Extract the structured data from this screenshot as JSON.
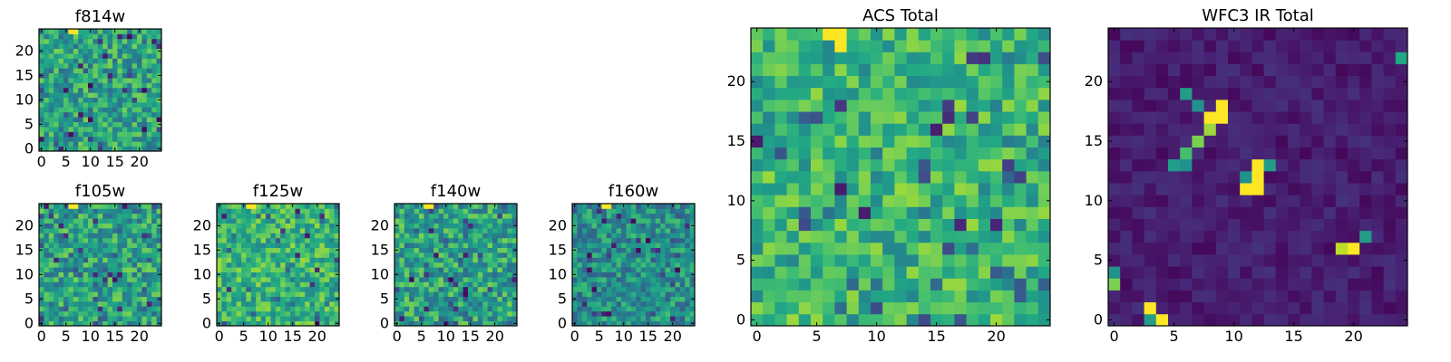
{
  "figure": {
    "colormap": "viridis",
    "colormap_stops": [
      "#440154",
      "#482475",
      "#414487",
      "#355f8d",
      "#2a788e",
      "#21918c",
      "#22a884",
      "#44bf70",
      "#7ad151",
      "#bddf26",
      "#fde725"
    ]
  },
  "chart_data": [
    {
      "type": "heatmap",
      "title": "f814w",
      "grid_size": 25,
      "xlim": [
        -0.5,
        24.5
      ],
      "ylim": [
        -0.5,
        24.5
      ],
      "xticks": [
        "0",
        "5",
        "10",
        "15",
        "20"
      ],
      "yticks": [
        "0",
        "5",
        "10",
        "15",
        "20"
      ],
      "values_note": "25x25 noise field, bright peak near x=5-9, y=23-24",
      "hotspots": [
        {
          "x": 6,
          "y": 24,
          "value": 1.0
        },
        {
          "x": 7,
          "y": 24,
          "value": 1.0
        }
      ]
    },
    {
      "type": "heatmap",
      "title": "f105w",
      "grid_size": 25,
      "xlim": [
        -0.5,
        24.5
      ],
      "ylim": [
        -0.5,
        24.5
      ],
      "xticks": [
        "0",
        "5",
        "10",
        "15",
        "20"
      ],
      "yticks": [
        "0",
        "5",
        "10",
        "15",
        "20"
      ],
      "hotspots": [
        {
          "x": 6,
          "y": 24,
          "value": 1.0
        },
        {
          "x": 7,
          "y": 24,
          "value": 1.0
        }
      ]
    },
    {
      "type": "heatmap",
      "title": "f125w",
      "grid_size": 25,
      "xlim": [
        -0.5,
        24.5
      ],
      "ylim": [
        -0.5,
        24.5
      ],
      "xticks": [
        "0",
        "5",
        "10",
        "15",
        "20"
      ],
      "yticks": [
        "0",
        "5",
        "10",
        "15",
        "20"
      ],
      "hotspots": [
        {
          "x": 6,
          "y": 24,
          "value": 1.0
        },
        {
          "x": 7,
          "y": 24,
          "value": 1.0
        }
      ]
    },
    {
      "type": "heatmap",
      "title": "f140w",
      "grid_size": 25,
      "xlim": [
        -0.5,
        24.5
      ],
      "ylim": [
        -0.5,
        24.5
      ],
      "xticks": [
        "0",
        "5",
        "10",
        "15",
        "20"
      ],
      "yticks": [
        "0",
        "5",
        "10",
        "15",
        "20"
      ],
      "hotspots": [
        {
          "x": 6,
          "y": 24,
          "value": 1.0
        },
        {
          "x": 7,
          "y": 24,
          "value": 1.0
        }
      ]
    },
    {
      "type": "heatmap",
      "title": "f160w",
      "grid_size": 25,
      "xlim": [
        -0.5,
        24.5
      ],
      "ylim": [
        -0.5,
        24.5
      ],
      "xticks": [
        "0",
        "5",
        "10",
        "15",
        "20"
      ],
      "yticks": [
        "0",
        "5",
        "10",
        "15",
        "20"
      ],
      "hotspots": [
        {
          "x": 6,
          "y": 24,
          "value": 1.0
        },
        {
          "x": 7,
          "y": 24,
          "value": 1.0
        }
      ]
    },
    {
      "type": "heatmap",
      "title": "ACS Total",
      "grid_size": 25,
      "xlim": [
        -0.5,
        24.5
      ],
      "ylim": [
        -0.5,
        24.5
      ],
      "xticks": [
        "0",
        "5",
        "10",
        "15",
        "20"
      ],
      "yticks": [
        "0",
        "5",
        "10",
        "15",
        "20"
      ],
      "hotspots": [
        {
          "x": 6,
          "y": 24,
          "value": 1.0
        },
        {
          "x": 7,
          "y": 24,
          "value": 1.0
        },
        {
          "x": 7,
          "y": 23,
          "value": 1.0
        }
      ]
    },
    {
      "type": "heatmap",
      "title": "WFC3 IR Total",
      "grid_size": 25,
      "xlim": [
        -0.5,
        24.5
      ],
      "ylim": [
        -0.5,
        24.5
      ],
      "xticks": [
        "0",
        "5",
        "10",
        "15",
        "20"
      ],
      "yticks": [
        "0",
        "5",
        "10",
        "15",
        "20"
      ],
      "background": "low (dark purple)",
      "hotspots": [
        {
          "x": 9,
          "y": 18,
          "value": 1.0
        },
        {
          "x": 8,
          "y": 17,
          "value": 1.0
        },
        {
          "x": 9,
          "y": 17,
          "value": 1.0
        },
        {
          "x": 8,
          "y": 16,
          "value": 0.85
        },
        {
          "x": 7,
          "y": 15,
          "value": 0.8
        },
        {
          "x": 6,
          "y": 14,
          "value": 0.7
        },
        {
          "x": 6,
          "y": 19,
          "value": 0.55
        },
        {
          "x": 7,
          "y": 18,
          "value": 0.5
        },
        {
          "x": 5,
          "y": 13,
          "value": 0.55
        },
        {
          "x": 6,
          "y": 13,
          "value": 0.5
        },
        {
          "x": 12,
          "y": 13,
          "value": 1.0
        },
        {
          "x": 12,
          "y": 12,
          "value": 1.0
        },
        {
          "x": 11,
          "y": 11,
          "value": 1.0
        },
        {
          "x": 12,
          "y": 11,
          "value": 1.0
        },
        {
          "x": 11,
          "y": 12,
          "value": 0.5
        },
        {
          "x": 13,
          "y": 13,
          "value": 0.55
        },
        {
          "x": 19,
          "y": 6,
          "value": 0.9
        },
        {
          "x": 20,
          "y": 6,
          "value": 1.0
        },
        {
          "x": 21,
          "y": 7,
          "value": 0.55
        },
        {
          "x": 3,
          "y": 1,
          "value": 1.0
        },
        {
          "x": 4,
          "y": 0,
          "value": 1.0
        },
        {
          "x": 3,
          "y": 0,
          "value": 0.55
        },
        {
          "x": 24,
          "y": 22,
          "value": 0.6
        },
        {
          "x": 0,
          "y": 3,
          "value": 0.8
        },
        {
          "x": 0,
          "y": 4,
          "value": 0.5
        }
      ]
    }
  ]
}
